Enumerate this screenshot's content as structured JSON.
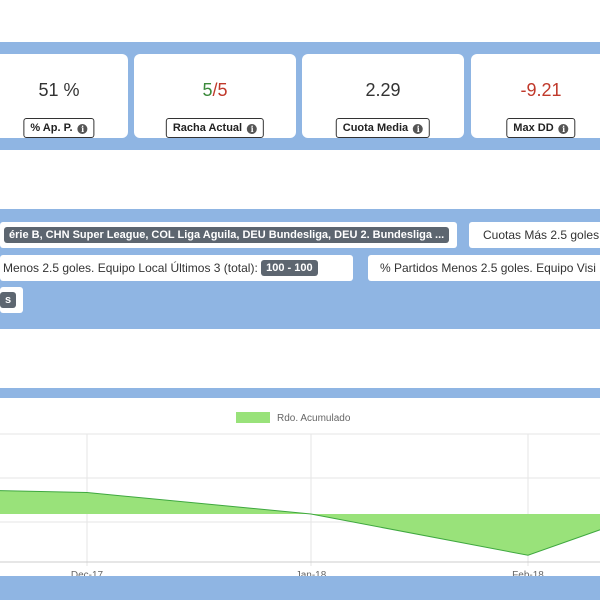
{
  "stats": {
    "ap_value": "51 %",
    "ap_label": "% Ap. P.",
    "racha_num": "5",
    "racha_sep": "/",
    "racha_den": "5",
    "racha_label": "Racha Actual",
    "cuota_value": "2.29",
    "cuota_label": "Cuota Media",
    "maxdd_value": "-9.21",
    "maxdd_label": "Max DD",
    "info_glyph": "i"
  },
  "filters": {
    "leagues": "érie B, CHN Super League, COL Liga Aguila, DEU Bundesliga, DEU 2. Bundesliga ...",
    "cuotas_label": "Cuotas Más 2.5 goles",
    "local_label": "Menos 2.5 goles. Equipo Local Últimos 3 (total):",
    "local_range": "100 - 100",
    "visit_label": "% Partidos Menos 2.5 goles. Equipo Visi",
    "tag_fragment": "s"
  },
  "chart_data": {
    "type": "area",
    "legend": "Rdo. Acumulado",
    "legend_position": "top",
    "x_tick_labels": [
      "Dec-17",
      "Jan-18",
      "Feb-18"
    ],
    "series": [
      {
        "name": "Rdo. Acumulado",
        "color": "#99e27a",
        "points": [
          {
            "x": "2017-11-25",
            "y": 1.5
          },
          {
            "x": "2017-12-17",
            "y": 1.3
          },
          {
            "x": "2018-01-18",
            "y": 0
          },
          {
            "x": "2018-02-18",
            "y": -2.5
          },
          {
            "x": "2018-03-02",
            "y": -0.7
          }
        ]
      }
    ],
    "grid": true
  }
}
